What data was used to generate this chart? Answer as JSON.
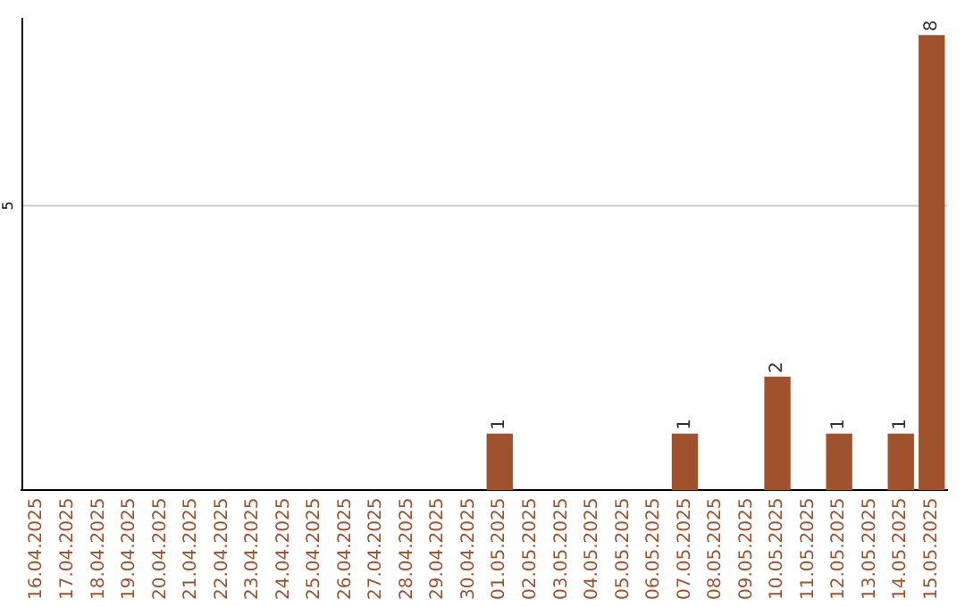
{
  "chart_data": {
    "type": "bar",
    "ylim": [
      0,
      8.3
    ],
    "categories": [
      "16.04.2025",
      "17.04.2025",
      "18.04.2025",
      "19.04.2025",
      "20.04.2025",
      "21.04.2025",
      "22.04.2025",
      "23.04.2025",
      "24.04.2025",
      "25.04.2025",
      "26.04.2025",
      "27.04.2025",
      "28.04.2025",
      "29.04.2025",
      "30.04.2025",
      "01.05.2025",
      "02.05.2025",
      "03.05.2025",
      "04.05.2025",
      "05.05.2025",
      "06.05.2025",
      "07.05.2025",
      "08.05.2025",
      "09.05.2025",
      "10.05.2025",
      "11.05.2025",
      "12.05.2025",
      "13.05.2025",
      "14.05.2025",
      "15.05.2025"
    ],
    "values": [
      null,
      null,
      null,
      null,
      null,
      null,
      null,
      null,
      null,
      null,
      null,
      null,
      null,
      null,
      null,
      1,
      null,
      null,
      null,
      null,
      null,
      1,
      null,
      null,
      2,
      null,
      1,
      null,
      1,
      8
    ],
    "value_labels": [
      null,
      null,
      null,
      null,
      null,
      null,
      null,
      null,
      null,
      null,
      null,
      null,
      null,
      null,
      null,
      "1",
      null,
      null,
      null,
      null,
      null,
      "1",
      null,
      null,
      "2",
      null,
      "1",
      null,
      "1",
      "8"
    ],
    "color": "#a0522d",
    "ref_lines": [
      {
        "axis": "y",
        "value": 5,
        "label": "5",
        "color": "#cccccc"
      }
    ],
    "legend": false
  }
}
